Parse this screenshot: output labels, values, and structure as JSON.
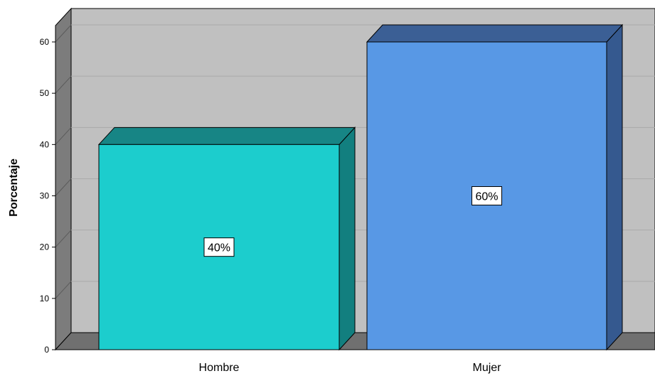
{
  "chart_data": {
    "type": "bar",
    "style": "3d",
    "categories": [
      "Hombre",
      "Mujer"
    ],
    "values": [
      40,
      60
    ],
    "data_labels": [
      "40%",
      "60%"
    ],
    "ylabel": "Porcentaje",
    "xlabel": "",
    "ylim": [
      0,
      60
    ],
    "yticks": [
      "0",
      "10",
      "20",
      "30",
      "40",
      "50",
      "60"
    ],
    "grid": true,
    "colors": {
      "Hombre": {
        "front": "#1ccdcd",
        "side": "#127f7f",
        "top": "#178585"
      },
      "Mujer": {
        "front": "#5898e5",
        "side": "#35598f",
        "top": "#3b5f95"
      },
      "plot_background": "#c0c0c0",
      "wall": "#7c7c7c",
      "floor": "#707070",
      "gridline": "#aaaaaa"
    }
  }
}
